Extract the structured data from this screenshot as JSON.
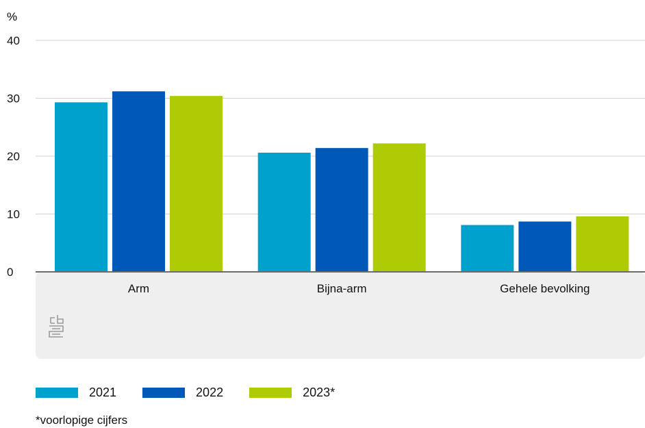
{
  "chart_data": {
    "type": "bar",
    "ylabel": "%",
    "ylim": [
      0,
      40
    ],
    "yticks": [
      0,
      10,
      20,
      30,
      40
    ],
    "grid": true,
    "categories": [
      "Arm",
      "Bijna-arm",
      "Gehele bevolking"
    ],
    "series": [
      {
        "name": "2021",
        "color": "#00a1cd",
        "values": [
          29.3,
          20.6,
          8.1
        ]
      },
      {
        "name": "2022",
        "color": "#0058b8",
        "values": [
          31.2,
          21.4,
          8.7
        ]
      },
      {
        "name": "2023*",
        "color": "#afcb05",
        "values": [
          30.4,
          22.2,
          9.6
        ]
      }
    ],
    "legend_position": "bottom-left"
  },
  "footnote": "*voorlopige cijfers",
  "logo": {
    "icon": "cbs-logo-icon",
    "text": "cbs"
  }
}
